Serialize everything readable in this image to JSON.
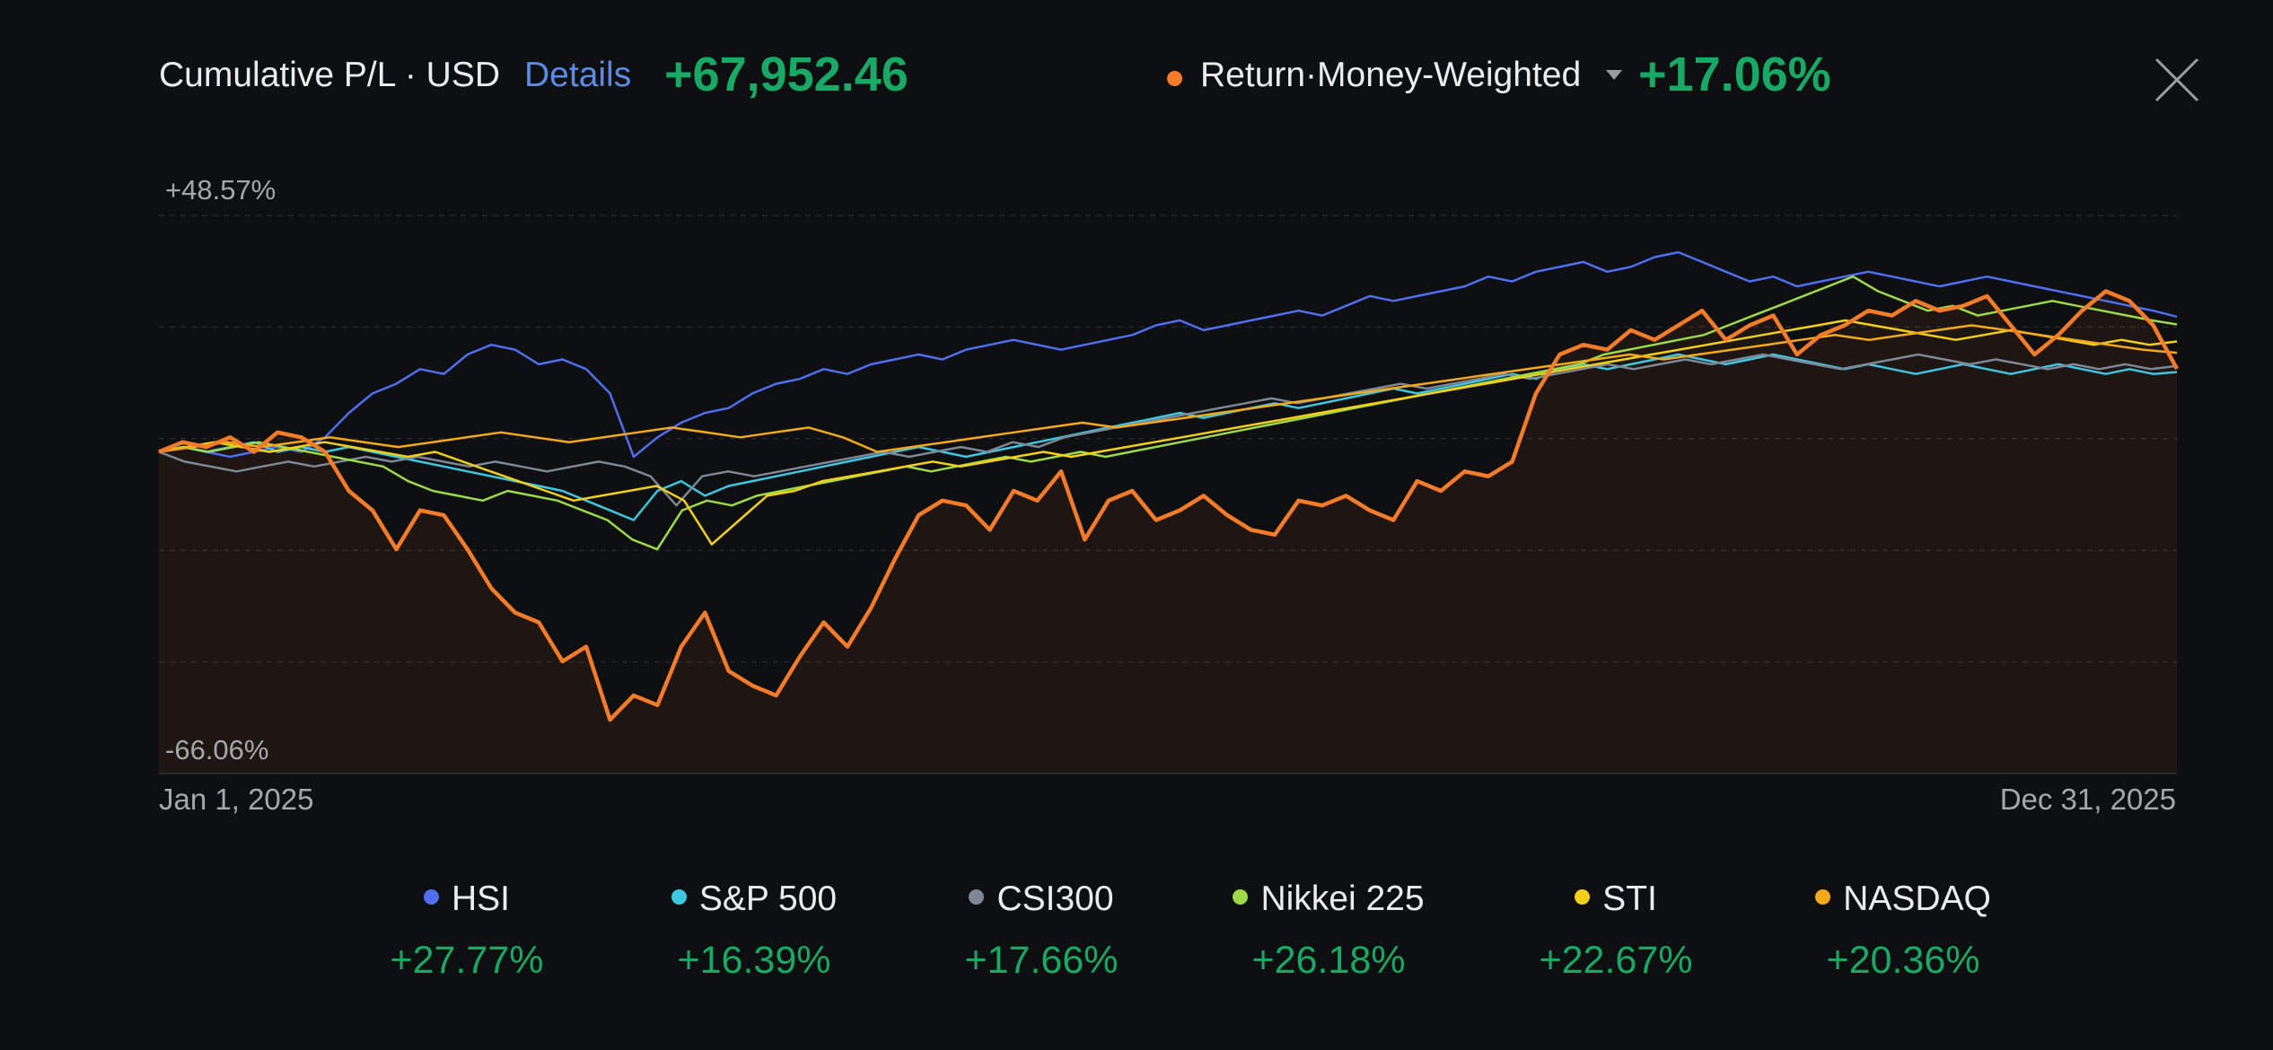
{
  "header": {
    "title": "Cumulative P/L · USD",
    "details_link": "Details",
    "pl_value": "+67,952.46",
    "return_label": "Return·Money-Weighted",
    "return_value": "+17.06%",
    "return_color": "#f47b2a"
  },
  "chart_data": {
    "type": "line",
    "ylim": [
      -66.06,
      48.57
    ],
    "y_tick_labels": [
      "+48.57%",
      "-66.06%"
    ],
    "x_range_labels": [
      "Jan 1, 2025",
      "Dec 31, 2025"
    ],
    "grid": true,
    "legend_position": "bottom",
    "series": [
      {
        "name": "Return·Money-Weighted",
        "color": "#f47b2a",
        "fill": true,
        "values": [
          0,
          2,
          1,
          3,
          0,
          4,
          3,
          0,
          -8,
          -12,
          -20,
          -12,
          -13,
          -20,
          -28,
          -33,
          -35,
          -43,
          -40,
          -55,
          -50,
          -52,
          -40,
          -33,
          -45,
          -48,
          -50,
          -42,
          -35,
          -40,
          -32,
          -22,
          -13,
          -10,
          -11,
          -16,
          -8,
          -10,
          -4,
          -18,
          -10,
          -8,
          -14,
          -12,
          -9,
          -13,
          -16,
          -17,
          -10,
          -11,
          -9,
          -12,
          -14,
          -6,
          -8,
          -4,
          -5,
          -2,
          12,
          20,
          22,
          21,
          25,
          23,
          26,
          29,
          23,
          26,
          28,
          20,
          24,
          26,
          29,
          28,
          31,
          29,
          30,
          32,
          26,
          20,
          24,
          29,
          33,
          31,
          26,
          17.06
        ]
      },
      {
        "name": "HSI",
        "color": "#4f6ef0",
        "values": [
          0,
          1,
          0,
          -1,
          0,
          1,
          0,
          3,
          8,
          12,
          14,
          17,
          16,
          20,
          22,
          21,
          18,
          19,
          17,
          12,
          -1,
          3,
          6,
          8,
          9,
          12,
          14,
          15,
          17,
          16,
          18,
          19,
          20,
          19,
          21,
          22,
          23,
          22,
          21,
          22,
          23,
          24,
          26,
          27,
          25,
          26,
          27,
          28,
          29,
          28,
          30,
          32,
          31,
          32,
          33,
          34,
          36,
          35,
          37,
          38,
          39,
          37,
          38,
          40,
          41,
          39,
          37,
          35,
          36,
          34,
          35,
          36,
          37,
          36,
          35,
          34,
          35,
          36,
          35,
          34,
          33,
          32,
          31,
          30,
          29,
          27.77
        ]
      },
      {
        "name": "S&P 500",
        "color": "#3fc6e0",
        "values": [
          0,
          1,
          0,
          1,
          2,
          0,
          1,
          0,
          1,
          0,
          -1,
          -2,
          -3,
          -4,
          -5,
          -6,
          -7,
          -8,
          -10,
          -12,
          -14,
          -8,
          -6,
          -9,
          -7,
          -6,
          -5,
          -4,
          -3,
          -2,
          -1,
          0,
          1,
          0,
          -1,
          0,
          1,
          2,
          3,
          4,
          5,
          6,
          7,
          8,
          7,
          8,
          9,
          10,
          9,
          10,
          11,
          12,
          13,
          12,
          13,
          14,
          15,
          16,
          15,
          17,
          18,
          17,
          18,
          19,
          20,
          19,
          18,
          19,
          20,
          19,
          18,
          17,
          18,
          17,
          16,
          17,
          18,
          17,
          16,
          17,
          18,
          17,
          16,
          17,
          16,
          16.39
        ]
      },
      {
        "name": "CSI300",
        "color": "#7f8794",
        "values": [
          0,
          -2,
          -3,
          -4,
          -3,
          -2,
          -3,
          -2,
          -1,
          -2,
          -1,
          -2,
          -3,
          -2,
          -3,
          -4,
          -3,
          -2,
          -3,
          -5,
          -11,
          -5,
          -4,
          -5,
          -4,
          -3,
          -2,
          -1,
          0,
          -1,
          0,
          1,
          0,
          2,
          1,
          3,
          4,
          5,
          6,
          7,
          8,
          9,
          10,
          11,
          10,
          11,
          12,
          13,
          14,
          13,
          14,
          15,
          16,
          15,
          16,
          17,
          18,
          17,
          18,
          19,
          18,
          19,
          20,
          19,
          18,
          17,
          18,
          19,
          20,
          19,
          18,
          19,
          18,
          17,
          18,
          17,
          18,
          17,
          17.66
        ]
      },
      {
        "name": "Nikkei 225",
        "color": "#9fd84a",
        "values": [
          0,
          1,
          0,
          1,
          2,
          1,
          0,
          -1,
          -2,
          -3,
          -6,
          -8,
          -9,
          -10,
          -8,
          -9,
          -10,
          -12,
          -14,
          -18,
          -20,
          -12,
          -10,
          -11,
          -9,
          -8,
          -7,
          -6,
          -5,
          -4,
          -3,
          -4,
          -3,
          -2,
          -1,
          -2,
          -1,
          0,
          -1,
          0,
          1,
          2,
          3,
          4,
          5,
          6,
          7,
          8,
          9,
          10,
          11,
          12,
          13,
          14,
          15,
          16,
          17,
          18,
          20,
          21,
          22,
          23,
          24,
          26,
          28,
          30,
          32,
          34,
          36,
          33,
          31,
          29,
          30,
          28,
          29,
          30,
          31,
          30,
          29,
          28,
          27,
          26.18
        ]
      },
      {
        "name": "STI",
        "color": "#f2cf1b",
        "values": [
          0,
          1,
          2,
          1,
          0,
          1,
          2,
          1,
          0,
          -1,
          0,
          -2,
          -4,
          -6,
          -8,
          -10,
          -9,
          -8,
          -7,
          -10,
          -19,
          -14,
          -9,
          -8,
          -6,
          -5,
          -4,
          -3,
          -2,
          -3,
          -2,
          -1,
          0,
          -1,
          0,
          1,
          2,
          3,
          4,
          5,
          6,
          7,
          8,
          9,
          10,
          11,
          12,
          13,
          14,
          15,
          16,
          17,
          18,
          19,
          20,
          21,
          22,
          23,
          24,
          25,
          26,
          27,
          26,
          25,
          24,
          23,
          24,
          25,
          24,
          23,
          22,
          23,
          22,
          22.67
        ]
      },
      {
        "name": "NASDAQ",
        "color": "#f2a91b",
        "values": [
          0,
          1,
          2,
          1,
          2,
          3,
          2,
          1,
          2,
          3,
          4,
          3,
          2,
          3,
          4,
          5,
          4,
          3,
          4,
          5,
          3,
          0,
          1,
          2,
          3,
          4,
          5,
          6,
          5,
          6,
          7,
          8,
          9,
          10,
          11,
          12,
          13,
          14,
          15,
          16,
          17,
          18,
          19,
          20,
          19,
          20,
          21,
          22,
          23,
          24,
          23,
          24,
          25,
          26,
          25,
          24,
          23,
          22,
          21,
          20.36
        ]
      }
    ]
  },
  "legend": [
    {
      "name": "HSI",
      "value": "+27.77%",
      "color": "#4f6ef0"
    },
    {
      "name": "S&P 500",
      "value": "+16.39%",
      "color": "#3fc6e0"
    },
    {
      "name": "CSI300",
      "value": "+17.66%",
      "color": "#7f8794"
    },
    {
      "name": "Nikkei 225",
      "value": "+26.18%",
      "color": "#9fd84a"
    },
    {
      "name": "STI",
      "value": "+22.67%",
      "color": "#f2cf1b"
    },
    {
      "name": "NASDAQ",
      "value": "+20.36%",
      "color": "#f2a91b"
    }
  ]
}
